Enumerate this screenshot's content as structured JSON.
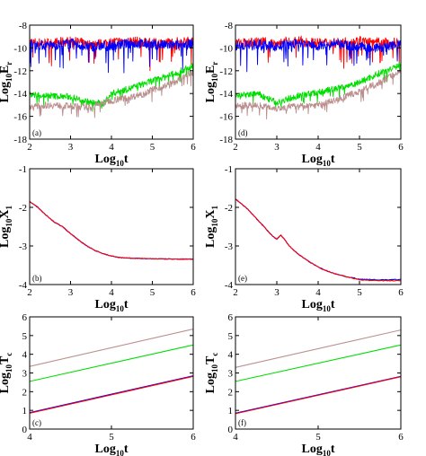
{
  "chart_data": [
    {
      "type": "line",
      "panel_label": "(a)",
      "xlabel": "Log10t",
      "ylabel": "Log10Er",
      "xlim": [
        2,
        6
      ],
      "ylim": [
        -18,
        -8
      ],
      "xticks": [
        "2",
        "3",
        "4",
        "5",
        "6"
      ],
      "yticks": [
        "-18",
        "-16",
        "-14",
        "-12",
        "-10",
        "-8"
      ],
      "series": [
        {
          "color": "#ff0000",
          "x": [
            2,
            2.5,
            3,
            3.5,
            4,
            4.5,
            5,
            5.5,
            6
          ],
          "y": [
            -9.5,
            -9.6,
            -9.4,
            -9.7,
            -9.5,
            -9.4,
            -9.6,
            -9.5,
            -9.4
          ]
        },
        {
          "color": "#0000ff",
          "x": [
            2,
            2.5,
            3,
            3.5,
            4,
            4.5,
            5,
            5.5,
            6
          ],
          "y": [
            -9.7,
            -9.8,
            -9.6,
            -9.9,
            -9.8,
            -9.6,
            -9.7,
            -9.8,
            -9.6
          ]
        },
        {
          "color": "#00dd00",
          "x": [
            2,
            2.5,
            3,
            3.5,
            3.8,
            4,
            4.5,
            5,
            5.5,
            6
          ],
          "y": [
            -14.1,
            -14.2,
            -14.3,
            -14.8,
            -14.9,
            -14.0,
            -13.5,
            -12.9,
            -12.3,
            -11.6
          ]
        },
        {
          "color": "#bc8f8f",
          "x": [
            2,
            2.5,
            3,
            3.5,
            4,
            4.5,
            5,
            5.5,
            6
          ],
          "y": [
            -15.2,
            -15.0,
            -15.1,
            -15.2,
            -14.6,
            -14.3,
            -13.7,
            -13.1,
            -12.1
          ]
        }
      ]
    },
    {
      "type": "line",
      "panel_label": "(d)",
      "xlabel": "Log10t",
      "ylabel": "Log10Er",
      "xlim": [
        2,
        6
      ],
      "ylim": [
        -18,
        -8
      ],
      "xticks": [
        "2",
        "3",
        "4",
        "5",
        "6"
      ],
      "yticks": [
        "-18",
        "-16",
        "-14",
        "-12",
        "-10",
        "-8"
      ],
      "series": [
        {
          "color": "#ff0000",
          "x": [
            2,
            2.5,
            3,
            3.5,
            4,
            4.5,
            5,
            5.5,
            6
          ],
          "y": [
            -9.6,
            -9.5,
            -9.6,
            -9.4,
            -9.6,
            -9.5,
            -9.4,
            -9.6,
            -9.5
          ]
        },
        {
          "color": "#0000ff",
          "x": [
            2,
            2.5,
            3,
            3.5,
            4,
            4.5,
            5,
            5.5,
            6
          ],
          "y": [
            -9.8,
            -9.7,
            -9.9,
            -9.6,
            -9.8,
            -9.7,
            -9.9,
            -10.0,
            -9.7
          ]
        },
        {
          "color": "#00dd00",
          "x": [
            2,
            2.5,
            3,
            3.5,
            4,
            4.5,
            5,
            5.5,
            6
          ],
          "y": [
            -14.3,
            -14.0,
            -14.8,
            -14.2,
            -13.9,
            -13.5,
            -13.0,
            -12.2,
            -11.4
          ]
        },
        {
          "color": "#bc8f8f",
          "x": [
            2,
            2.5,
            3,
            3.5,
            4,
            4.5,
            5,
            5.5,
            6
          ],
          "y": [
            -15.1,
            -15.0,
            -15.3,
            -15.1,
            -15.0,
            -14.5,
            -13.8,
            -13.0,
            -12.0
          ]
        }
      ]
    },
    {
      "type": "line",
      "panel_label": "(b)",
      "xlabel": "Log10t",
      "ylabel": "Log10X1",
      "xlim": [
        2,
        6
      ],
      "ylim": [
        -4,
        -1
      ],
      "xticks": [
        "2",
        "3",
        "4",
        "5",
        "6"
      ],
      "yticks": [
        "-4",
        "-3",
        "-2",
        "-1"
      ],
      "series": [
        {
          "color": "#0000ff",
          "x": [
            2,
            2.2,
            2.4,
            2.6,
            2.8,
            3.0,
            3.2,
            3.4,
            3.6,
            3.8,
            4.0,
            4.2,
            4.5,
            5.0,
            5.5,
            6.0
          ],
          "y": [
            -1.85,
            -2.0,
            -2.2,
            -2.38,
            -2.5,
            -2.68,
            -2.85,
            -3.0,
            -3.12,
            -3.2,
            -3.26,
            -3.3,
            -3.32,
            -3.33,
            -3.34,
            -3.34
          ]
        },
        {
          "color": "#ff0000",
          "x": [
            2,
            2.2,
            2.4,
            2.6,
            2.8,
            3.0,
            3.2,
            3.4,
            3.6,
            3.8,
            4.0,
            4.2,
            4.5,
            5.0,
            5.5,
            6.0
          ],
          "y": [
            -1.85,
            -2.0,
            -2.2,
            -2.38,
            -2.5,
            -2.68,
            -2.85,
            -3.0,
            -3.12,
            -3.2,
            -3.26,
            -3.3,
            -3.32,
            -3.33,
            -3.34,
            -3.34
          ]
        }
      ]
    },
    {
      "type": "line",
      "panel_label": "(e)",
      "xlabel": "Log10t",
      "ylabel": "Log10X1",
      "xlim": [
        2,
        6
      ],
      "ylim": [
        -4,
        -1
      ],
      "xticks": [
        "2",
        "3",
        "4",
        "5",
        "6"
      ],
      "yticks": [
        "-4",
        "-3",
        "-2",
        "-1"
      ],
      "series": [
        {
          "color": "#0000ff",
          "x": [
            2,
            2.3,
            2.6,
            2.9,
            3.0,
            3.1,
            3.2,
            3.3,
            3.5,
            3.8,
            4.1,
            4.4,
            4.7,
            5.0,
            5.5,
            6.0
          ],
          "y": [
            -1.78,
            -2.05,
            -2.4,
            -2.75,
            -2.82,
            -2.72,
            -2.85,
            -3.0,
            -3.2,
            -3.42,
            -3.6,
            -3.72,
            -3.8,
            -3.86,
            -3.88,
            -3.87
          ]
        },
        {
          "color": "#ff0000",
          "x": [
            2,
            2.3,
            2.6,
            2.9,
            3.0,
            3.1,
            3.2,
            3.3,
            3.5,
            3.8,
            4.1,
            4.4,
            4.7,
            5.0,
            5.5,
            6.0
          ],
          "y": [
            -1.78,
            -2.05,
            -2.4,
            -2.75,
            -2.82,
            -2.72,
            -2.85,
            -3.0,
            -3.2,
            -3.42,
            -3.6,
            -3.72,
            -3.8,
            -3.88,
            -3.9,
            -3.9
          ]
        }
      ]
    },
    {
      "type": "line",
      "panel_label": "(c)",
      "xlabel": "Log10t",
      "ylabel": "Log10Tc",
      "xlim": [
        4,
        6
      ],
      "ylim": [
        0,
        6
      ],
      "xticks": [
        "4",
        "5",
        "6"
      ],
      "yticks": [
        "0",
        "1",
        "2",
        "3",
        "4",
        "5",
        "6"
      ],
      "series": [
        {
          "color": "#bc8f8f",
          "x": [
            4,
            6
          ],
          "y": [
            3.35,
            5.35
          ]
        },
        {
          "color": "#00dd00",
          "x": [
            4,
            6
          ],
          "y": [
            2.55,
            4.5
          ]
        },
        {
          "color": "#0000ff",
          "x": [
            4,
            6
          ],
          "y": [
            0.88,
            2.85
          ]
        },
        {
          "color": "#ff0000",
          "x": [
            4,
            6
          ],
          "y": [
            0.85,
            2.82
          ]
        }
      ]
    },
    {
      "type": "line",
      "panel_label": "(f)",
      "xlabel": "Log10t",
      "ylabel": "Log10Tc",
      "xlim": [
        4,
        6
      ],
      "ylim": [
        0,
        6
      ],
      "xticks": [
        "4",
        "5",
        "6"
      ],
      "yticks": [
        "0",
        "1",
        "2",
        "3",
        "4",
        "5",
        "6"
      ],
      "series": [
        {
          "color": "#bc8f8f",
          "x": [
            4,
            6
          ],
          "y": [
            3.3,
            5.3
          ]
        },
        {
          "color": "#00dd00",
          "x": [
            4,
            6
          ],
          "y": [
            2.55,
            4.5
          ]
        },
        {
          "color": "#0000ff",
          "x": [
            4,
            6
          ],
          "y": [
            0.85,
            2.82
          ]
        },
        {
          "color": "#ff0000",
          "x": [
            4,
            6
          ],
          "y": [
            0.82,
            2.8
          ]
        }
      ]
    }
  ]
}
